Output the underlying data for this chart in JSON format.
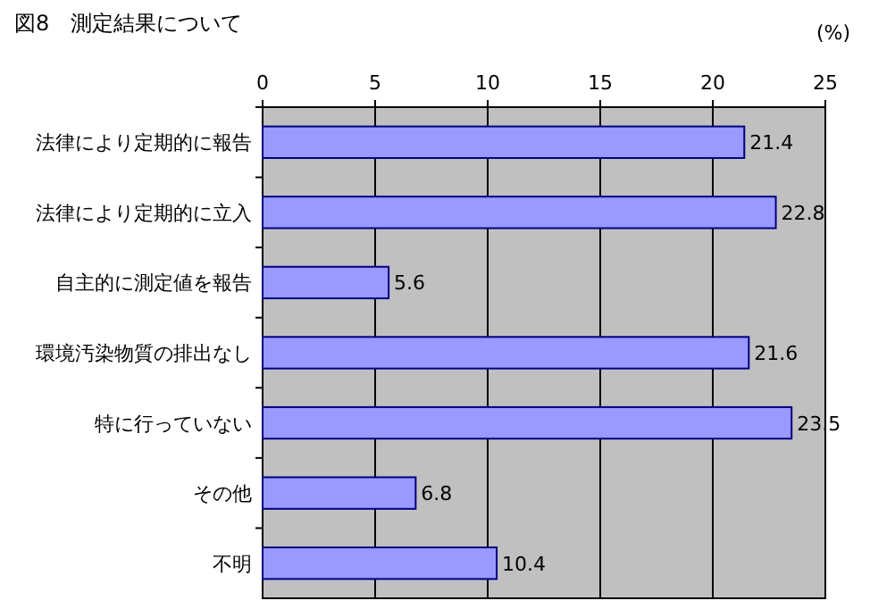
{
  "chart_data": {
    "type": "bar",
    "orientation": "horizontal",
    "title": "図8　測定結果について",
    "xlabel": "(%)",
    "categories": [
      "法律により定期的に報告",
      "法律により定期的に立入",
      "自主的に測定値を報告",
      "環境汚染物質の排出なし",
      "特に行っていない",
      "その他",
      "不明"
    ],
    "values": [
      21.4,
      22.8,
      5.6,
      21.6,
      23.5,
      6.8,
      10.4
    ],
    "color": "#9999ff",
    "xlim": [
      0,
      25
    ],
    "xticks": [
      0,
      5,
      10,
      15,
      20,
      25
    ],
    "grid": "x",
    "data_labels": true
  }
}
